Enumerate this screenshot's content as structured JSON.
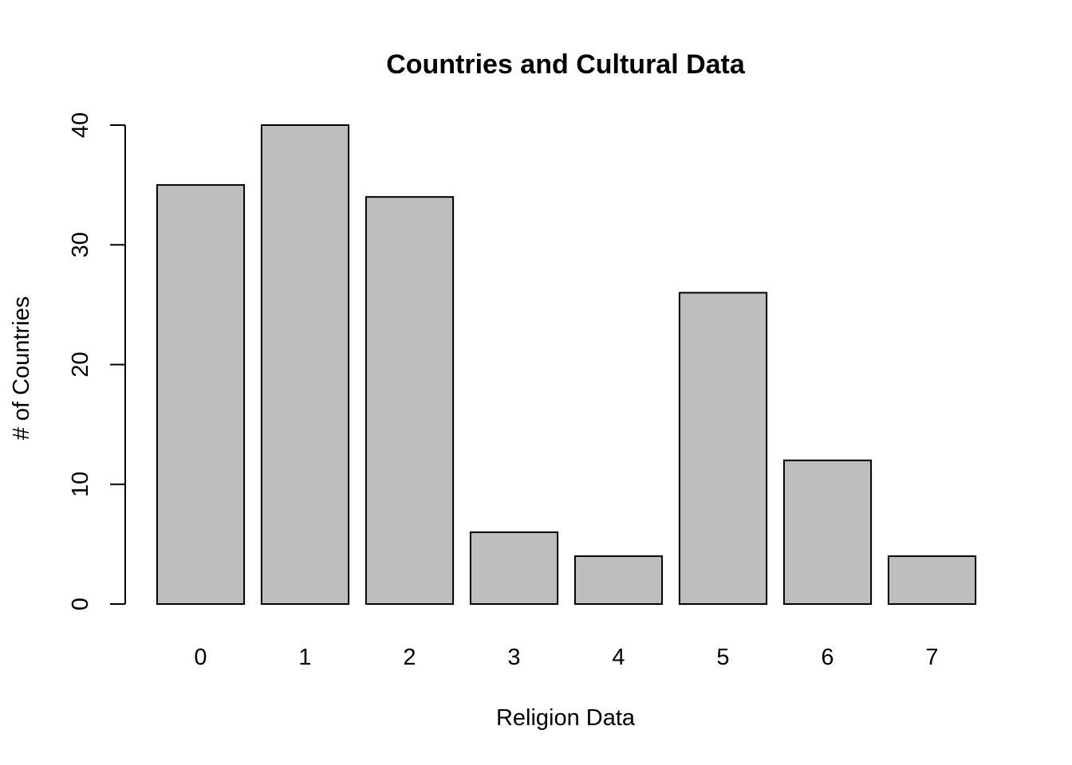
{
  "chart_data": {
    "type": "bar",
    "title": "Countries and Cultural Data",
    "xlabel": "Religion Data",
    "ylabel": "# of Countries",
    "categories": [
      "0",
      "1",
      "2",
      "3",
      "4",
      "5",
      "6",
      "7"
    ],
    "values": [
      35,
      40,
      34,
      6,
      4,
      26,
      12,
      4
    ],
    "ylim": [
      0,
      40
    ],
    "yticks": [
      "0",
      "10",
      "20",
      "30",
      "40"
    ],
    "grid": false,
    "legend": "none",
    "bar_color": "#bebebe",
    "bar_border_color": "#000000"
  }
}
